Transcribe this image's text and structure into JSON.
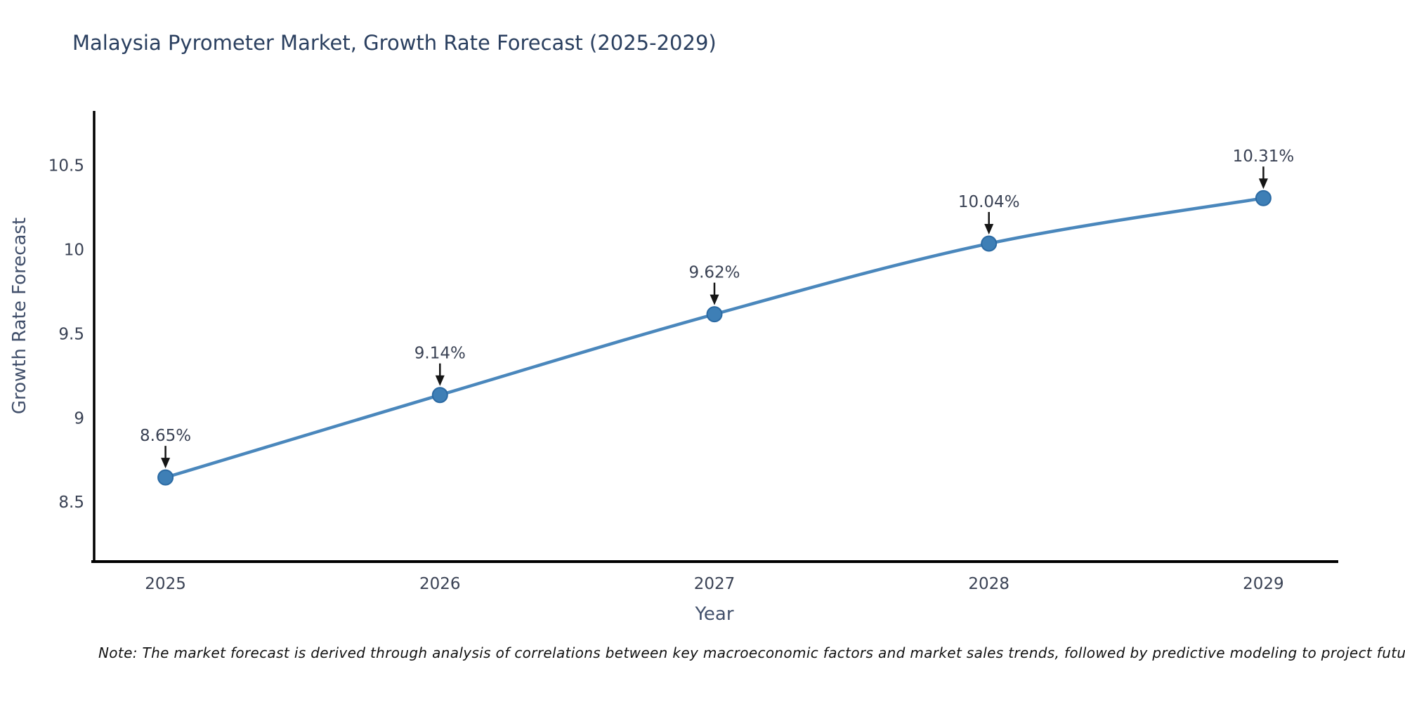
{
  "chart_data": {
    "type": "line",
    "title": "Malaysia Pyrometer Market, Growth Rate Forecast (2025-2029)",
    "xlabel": "Year",
    "ylabel": "Growth Rate Forecast",
    "x": [
      2025,
      2026,
      2027,
      2028,
      2029
    ],
    "xtick_labels": [
      "2025",
      "2026",
      "2027",
      "2028",
      "2029"
    ],
    "series": [
      {
        "name": "Growth Rate Forecast",
        "values": [
          8.65,
          9.14,
          9.62,
          10.04,
          10.31
        ],
        "point_labels": [
          "8.65%",
          "9.14%",
          "9.62%",
          "10.04%",
          "10.31%"
        ]
      }
    ],
    "yticks": [
      8.5,
      9,
      9.5,
      10,
      10.5
    ],
    "ytick_labels": [
      "8.5",
      "9",
      "9.5",
      "10",
      "10.5"
    ],
    "xlim": [
      2024.74,
      2029.26
    ],
    "ylim": [
      8.15,
      10.82
    ],
    "grid": false,
    "legend": "none",
    "line_shape": "spline",
    "colors": {
      "line": "#4a87bc",
      "marker_fill": "#3e7fb6",
      "marker_edge": "#2b6aa3",
      "axis_line": "#000000",
      "tick_text": "#3a4254",
      "annotation_text": "#3a4254",
      "annotation_arrow": "#151515",
      "title_text": "#2a3f5f"
    },
    "note": "Note: The market forecast is derived through analysis of correlations between key macroeconomic factors and market sales trends, followed by predictive modeling to project future sal"
  }
}
